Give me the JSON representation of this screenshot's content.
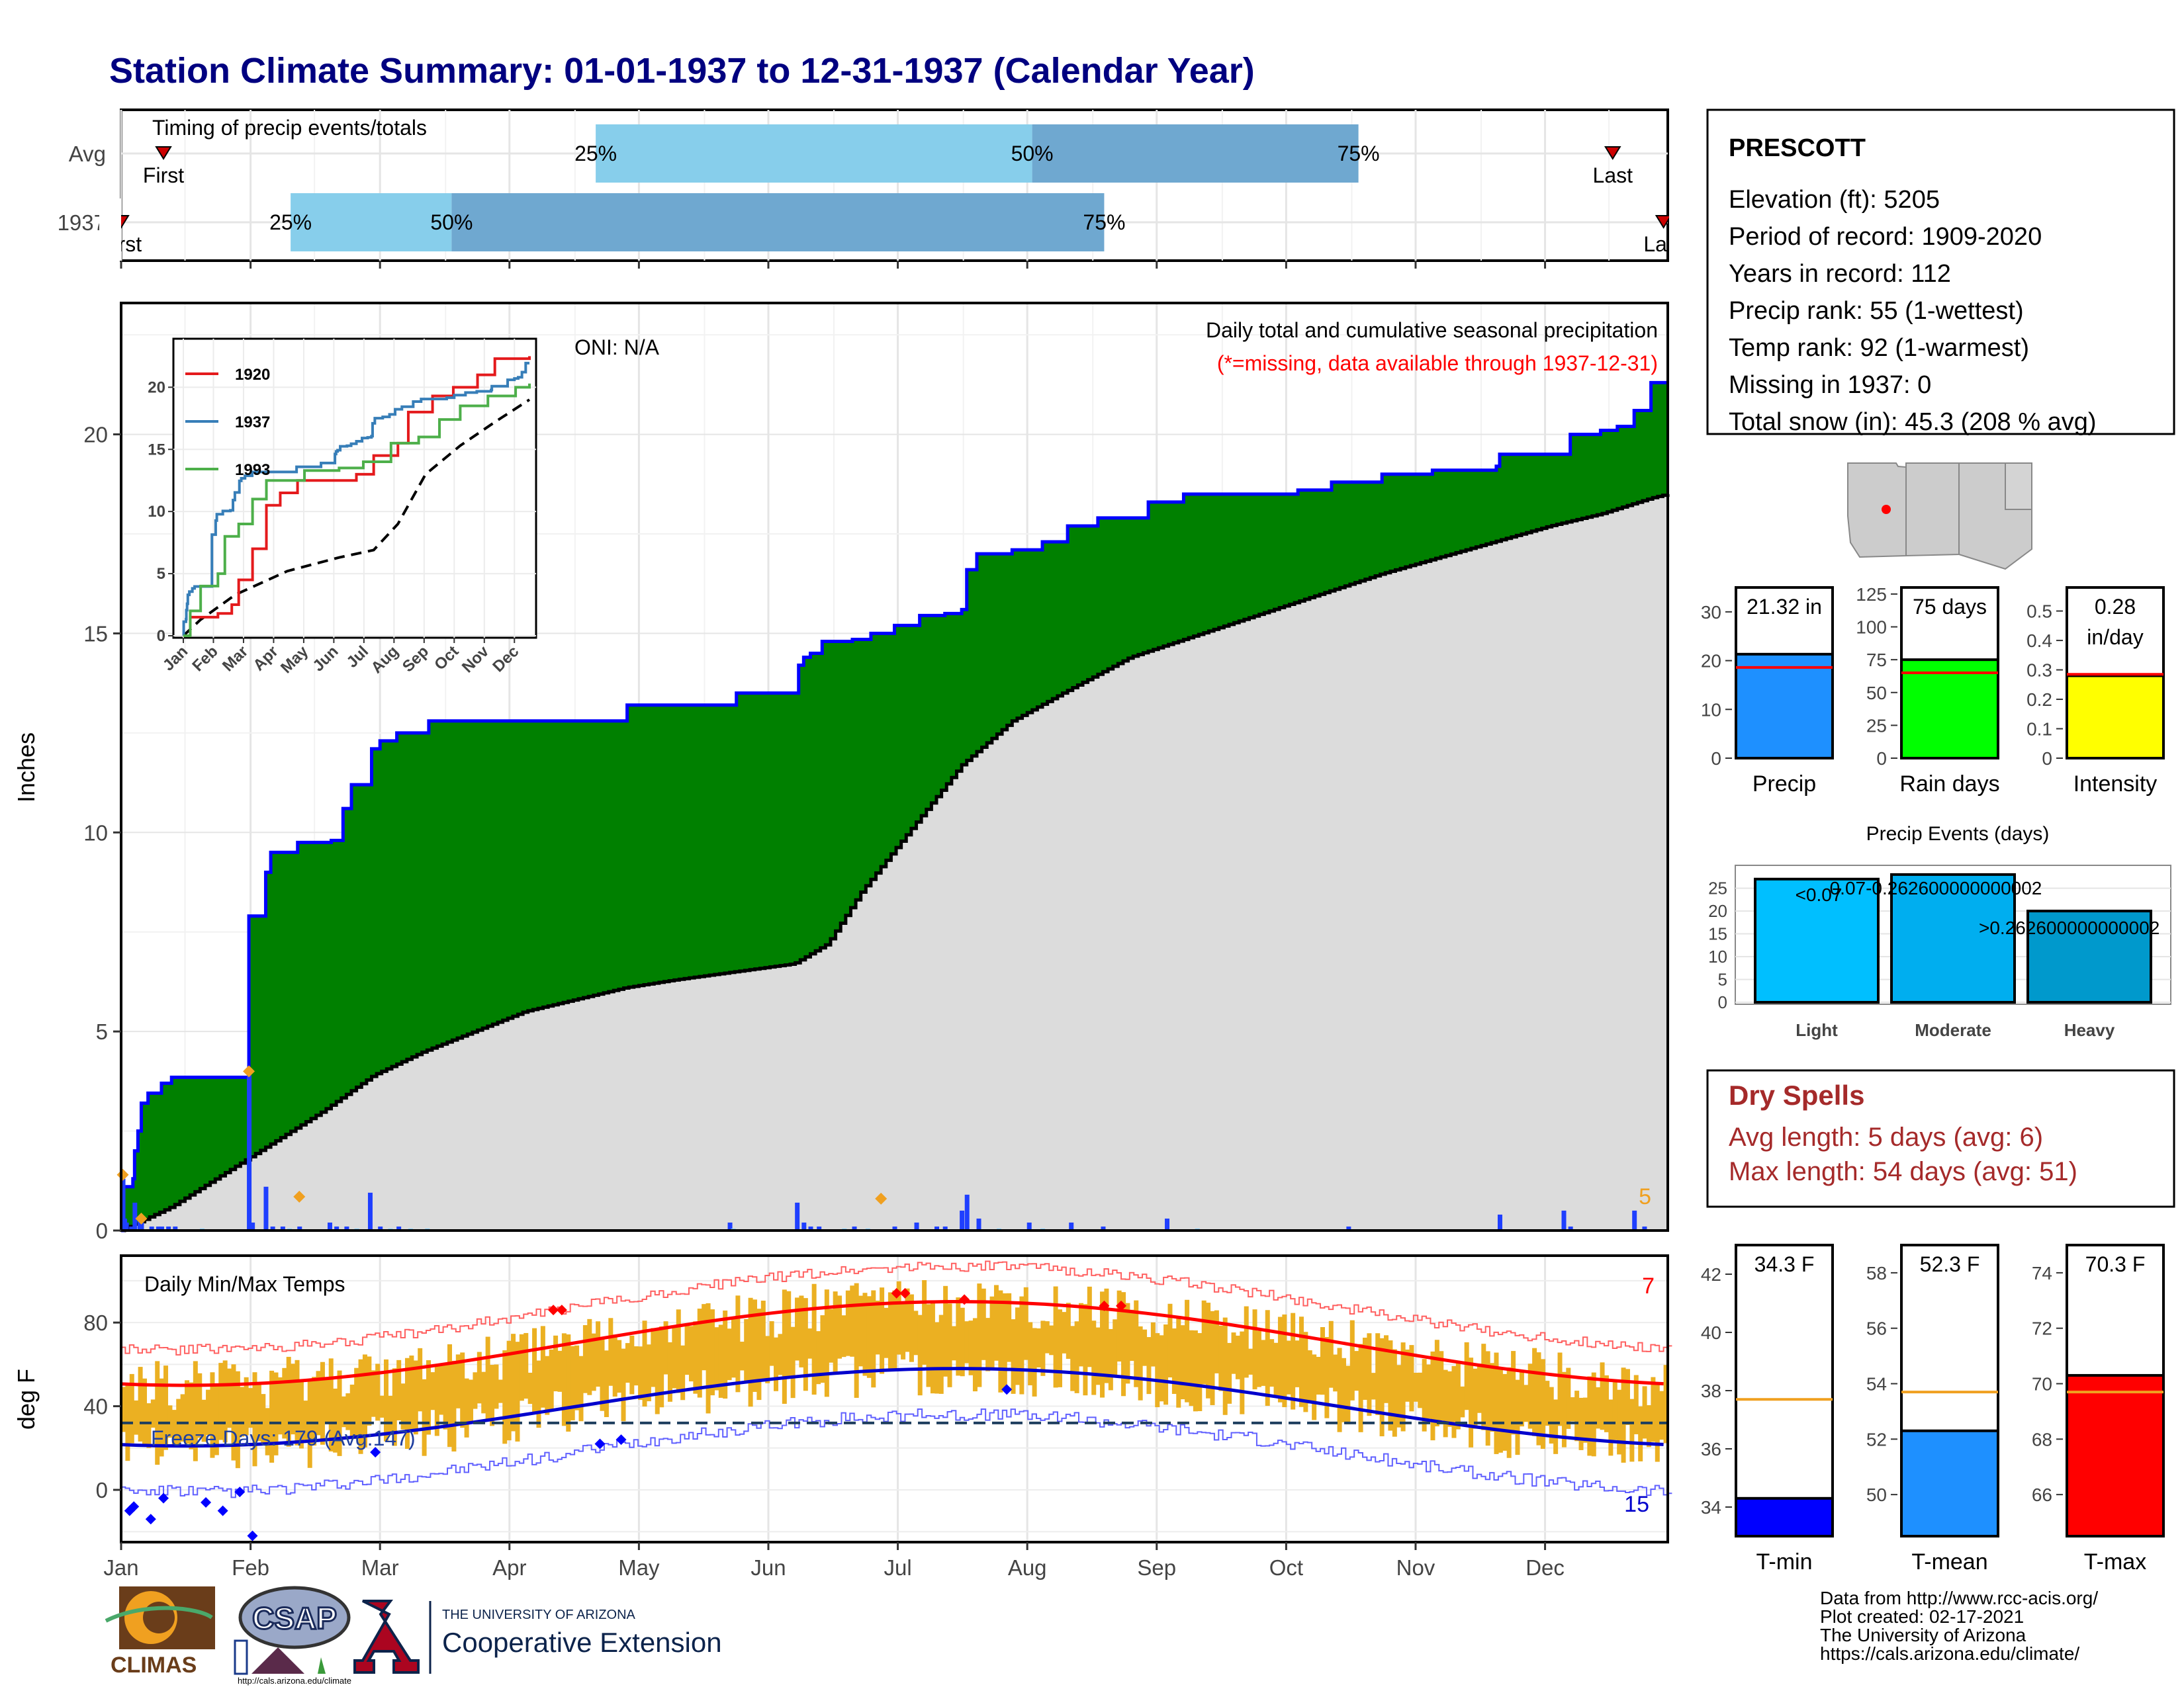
{
  "title": "Station Climate Summary: 01-01-1937 to 12-31-1937 (Calendar Year)",
  "colors": {
    "title": "#000080",
    "green": "#008000",
    "grey_fill": "#dcdcdc",
    "line_blue": "#0000ff",
    "bar_blue": "#1f3fff",
    "light_bar": "#87cefa",
    "timing_light": "#87ceeb",
    "timing_dark": "#6fa8d0",
    "orange": "#f0a020",
    "tmax": "#ff0000",
    "tmin": "#0000ff",
    "dry_spell": "#a52a2a"
  },
  "timing_panel": {
    "title": "Timing of precip events/totals",
    "rows": [
      {
        "label": "Avg",
        "p25": 112,
        "p50": 215,
        "p75": 292,
        "first": 10,
        "last": 352,
        "first_label": "First",
        "last_label": "Last",
        "p25_label": "25%",
        "p50_label": "50%",
        "p75_label": "75%"
      },
      {
        "label": "1937",
        "p25": 40,
        "p50": 78,
        "p75": 232,
        "first": 0,
        "last": 364,
        "first_label": "First",
        "last_label": "Last",
        "p25_label": "25%",
        "p50_label": "50%",
        "p75_label": "75%"
      }
    ]
  },
  "station": {
    "name": "PRESCOTT",
    "lines": [
      "Elevation (ft): 5205",
      "Period of record: 1909-2020",
      "Years in record: 112",
      "Precip rank: 55 (1-wettest)",
      "Temp rank: 92 (1-warmest)",
      "Missing in 1937: 0",
      "Total snow (in): 45.3 (208 % avg)"
    ]
  },
  "precip_panel": {
    "ylabel": "Inches",
    "title": "Daily total and cumulative seasonal precipitation",
    "subtitle": "(*=missing, data available through 1937-12-31)",
    "oni": "ONI: N/A",
    "corner_count": "5",
    "ylim": [
      0,
      23.3
    ],
    "yticks": [
      0,
      5,
      10,
      15,
      20
    ]
  },
  "inset": {
    "yticks": [
      0,
      5,
      10,
      15,
      20
    ],
    "months": [
      "Jan",
      "Feb",
      "Mar",
      "Apr",
      "May",
      "Jun",
      "Jul",
      "Aug",
      "Sep",
      "Oct",
      "Nov",
      "Dec"
    ],
    "legend": [
      {
        "label": "1920",
        "color": "#e41a1c"
      },
      {
        "label": "1937",
        "color": "#377eb8"
      },
      {
        "label": "1993",
        "color": "#4daf4a"
      }
    ]
  },
  "temp_panel": {
    "ylabel": "deg F",
    "title": "Daily Min/Max Temps",
    "freeze_label": "Freeze Days: 179 (Avg:147)",
    "hot_count": "7",
    "cold_count": "15",
    "ylim": [
      -25,
      112
    ],
    "yticks": [
      0,
      40,
      80
    ],
    "freeze_line": 32
  },
  "month_labels": [
    "Jan",
    "Feb",
    "Mar",
    "Apr",
    "May",
    "Jun",
    "Jul",
    "Aug",
    "Sep",
    "Oct",
    "Nov",
    "Dec"
  ],
  "summary_bars": [
    {
      "name": "Precip",
      "value": 21.32,
      "label": "21.32 in",
      "avg": 18.6,
      "ylim": [
        0,
        35
      ],
      "ticks": [
        0,
        10,
        20,
        30
      ],
      "color": "#1e90ff"
    },
    {
      "name": "Rain days",
      "value": 75,
      "label": "75 days",
      "avg": 65,
      "ylim": [
        0,
        130
      ],
      "ticks": [
        0,
        25,
        50,
        75,
        100,
        125
      ],
      "color": "#00ff00"
    },
    {
      "name": "Intensity",
      "value": 0.28,
      "label": "0.28\nin/day",
      "avg": 0.285,
      "ylim": [
        0,
        0.58
      ],
      "ticks": [
        0.0,
        0.1,
        0.2,
        0.3,
        0.4,
        0.5
      ],
      "color": "#ffff00"
    }
  ],
  "precip_events": {
    "title": "Precip Events (days)",
    "ylim": [
      0,
      29
    ],
    "ticks": [
      0,
      5,
      10,
      15,
      20,
      25
    ],
    "bars": [
      {
        "name": "Light",
        "value": 27,
        "label": "<0.07",
        "color": "#00bfff"
      },
      {
        "name": "Moderate",
        "value": 28,
        "label": "0.07-0.262600000000002",
        "color": "#00aeef"
      },
      {
        "name": "Heavy",
        "value": 20,
        "label": ">0.262600000000002",
        "color": "#0099cc"
      }
    ]
  },
  "dry_spells": {
    "title": "Dry Spells",
    "avg_line": "Avg length: 5 days (avg: 6)",
    "max_line": "Max length: 54 days (avg: 51)"
  },
  "temp_bars": [
    {
      "name": "T-min",
      "value": 34.3,
      "label": "34.3 F",
      "avg": 37.7,
      "ylim": [
        33,
        43
      ],
      "ticks": [
        34,
        36,
        38,
        40,
        42
      ],
      "color": "#0000ff"
    },
    {
      "name": "T-mean",
      "value": 52.3,
      "label": "52.3 F",
      "avg": 53.7,
      "ylim": [
        48.5,
        59
      ],
      "ticks": [
        50,
        52,
        54,
        56,
        58
      ],
      "color": "#1e90ff"
    },
    {
      "name": "T-max",
      "value": 70.3,
      "label": "70.3 F",
      "avg": 69.7,
      "ylim": [
        64.5,
        75
      ],
      "ticks": [
        66,
        68,
        70,
        72,
        74
      ],
      "color": "#ff0000"
    }
  ],
  "footer": {
    "lines": [
      "Data from http://www.rcc-acis.org/",
      "Plot created: 02-17-2021",
      "The University of Arizona",
      "https://cals.arizona.edu/climate/"
    ],
    "climas": "CLIMAS",
    "csap": "CSAP",
    "csap_url": "http://cals.arizona.edu/climate",
    "ua_small": "THE UNIVERSITY OF ARIZONA",
    "ua_big": "Cooperative Extension"
  },
  "chart_data": {
    "type": "area",
    "x_unit": "day of year 1937",
    "cumulative_precip_1937": [
      [
        0,
        0
      ],
      [
        1,
        1.1
      ],
      [
        6,
        1.1
      ],
      [
        7,
        1.3
      ],
      [
        8,
        2.0
      ],
      [
        10,
        2.5
      ],
      [
        12,
        3.2
      ],
      [
        16,
        3.45
      ],
      [
        24,
        3.7
      ],
      [
        30,
        3.85
      ],
      [
        75,
        3.85
      ],
      [
        76,
        7.9
      ],
      [
        85,
        7.9
      ],
      [
        86,
        9.0
      ],
      [
        89,
        9.5
      ],
      [
        105,
        9.75
      ],
      [
        125,
        9.8
      ],
      [
        132,
        10.6
      ],
      [
        137,
        11.2
      ],
      [
        149,
        12.1
      ],
      [
        154,
        12.3
      ],
      [
        164,
        12.5
      ],
      [
        183,
        12.8
      ],
      [
        300,
        12.8
      ],
      [
        301,
        13.2
      ],
      [
        365,
        13.2
      ],
      [
        366,
        13.5
      ],
      [
        402,
        13.5
      ],
      [
        403,
        14.2
      ],
      [
        406,
        14.4
      ],
      [
        410,
        14.5
      ],
      [
        417,
        14.8
      ],
      [
        435,
        14.85
      ],
      [
        446,
        15.0
      ],
      [
        460,
        15.2
      ],
      [
        475,
        15.45
      ],
      [
        490,
        15.5
      ],
      [
        500,
        15.6
      ],
      [
        503,
        16.6
      ],
      [
        509,
        17.0
      ],
      [
        530,
        17.1
      ],
      [
        548,
        17.3
      ],
      [
        563,
        17.7
      ],
      [
        581,
        17.9
      ],
      [
        610,
        17.9
      ],
      [
        611,
        18.3
      ],
      [
        632,
        18.5
      ],
      [
        700,
        18.6
      ],
      [
        720,
        18.8
      ],
      [
        750,
        19.0
      ],
      [
        780,
        19.1
      ],
      [
        818,
        19.2
      ],
      [
        820,
        19.5
      ],
      [
        860,
        19.5
      ],
      [
        862,
        20.0
      ],
      [
        880,
        20.1
      ],
      [
        890,
        20.2
      ],
      [
        900,
        20.6
      ],
      [
        910,
        21.3
      ],
      [
        920,
        21.3
      ]
    ],
    "avg_cumulative_precip": [
      [
        0,
        0
      ],
      [
        30,
        0.6
      ],
      [
        60,
        1.4
      ],
      [
        90,
        2.2
      ],
      [
        120,
        3.0
      ],
      [
        150,
        3.9
      ],
      [
        180,
        4.5
      ],
      [
        210,
        5.0
      ],
      [
        240,
        5.5
      ],
      [
        280,
        5.9
      ],
      [
        300,
        6.1
      ],
      [
        330,
        6.3
      ],
      [
        365,
        6.5
      ],
      [
        400,
        6.7
      ],
      [
        420,
        7.2
      ],
      [
        440,
        8.5
      ],
      [
        470,
        10.1
      ],
      [
        500,
        11.7
      ],
      [
        530,
        12.8
      ],
      [
        560,
        13.5
      ],
      [
        600,
        14.4
      ],
      [
        650,
        15.1
      ],
      [
        700,
        15.8
      ],
      [
        750,
        16.5
      ],
      [
        800,
        17.1
      ],
      [
        850,
        17.7
      ],
      [
        880,
        18.0
      ],
      [
        910,
        18.4
      ],
      [
        920,
        18.5
      ]
    ],
    "daily_precip_1937": [
      [
        1,
        1.3
      ],
      [
        2,
        0.3
      ],
      [
        3,
        0.2
      ],
      [
        6,
        0.1
      ],
      [
        8,
        0.7
      ],
      [
        11,
        0.3
      ],
      [
        12,
        0.2
      ],
      [
        18,
        0.1
      ],
      [
        22,
        0.1
      ],
      [
        24,
        0.1
      ],
      [
        28,
        0.1
      ],
      [
        32,
        0.1
      ],
      [
        48,
        0.05
      ],
      [
        76,
        3.9
      ],
      [
        78,
        0.2
      ],
      [
        86,
        1.1
      ],
      [
        90,
        0.1
      ],
      [
        96,
        0.1
      ],
      [
        100,
        0.05
      ],
      [
        106,
        0.1
      ],
      [
        124,
        0.2
      ],
      [
        128,
        0.1
      ],
      [
        134,
        0.1
      ],
      [
        140,
        0.05
      ],
      [
        148,
        0.95
      ],
      [
        154,
        0.1
      ],
      [
        160,
        0.05
      ],
      [
        165,
        0.1
      ],
      [
        172,
        0.05
      ],
      [
        182,
        0.05
      ],
      [
        362,
        0.2
      ],
      [
        364,
        0.05
      ],
      [
        402,
        0.7
      ],
      [
        406,
        0.2
      ],
      [
        410,
        0.1
      ],
      [
        415,
        0.1
      ],
      [
        430,
        0.05
      ],
      [
        436,
        0.1
      ],
      [
        444,
        0.05
      ],
      [
        460,
        0.1
      ],
      [
        473,
        0.2
      ],
      [
        485,
        0.1
      ],
      [
        490,
        0.1
      ],
      [
        500,
        0.5
      ],
      [
        503,
        0.9
      ],
      [
        510,
        0.3
      ],
      [
        522,
        0.05
      ],
      [
        540,
        0.2
      ],
      [
        548,
        0.05
      ],
      [
        565,
        0.2
      ],
      [
        584,
        0.1
      ],
      [
        622,
        0.3
      ],
      [
        640,
        0.05
      ],
      [
        730,
        0.1
      ],
      [
        820,
        0.4
      ],
      [
        858,
        0.5
      ],
      [
        862,
        0.1
      ],
      [
        900,
        0.5
      ],
      [
        906,
        0.1
      ]
    ],
    "temp_normals": {
      "avg_max_jan": 50,
      "avg_max_jul": 90,
      "avg_min_jan": 21,
      "avg_min_jul": 58,
      "freeze": 32
    },
    "x_mapping_note": "custom day index used for the main panel"
  }
}
